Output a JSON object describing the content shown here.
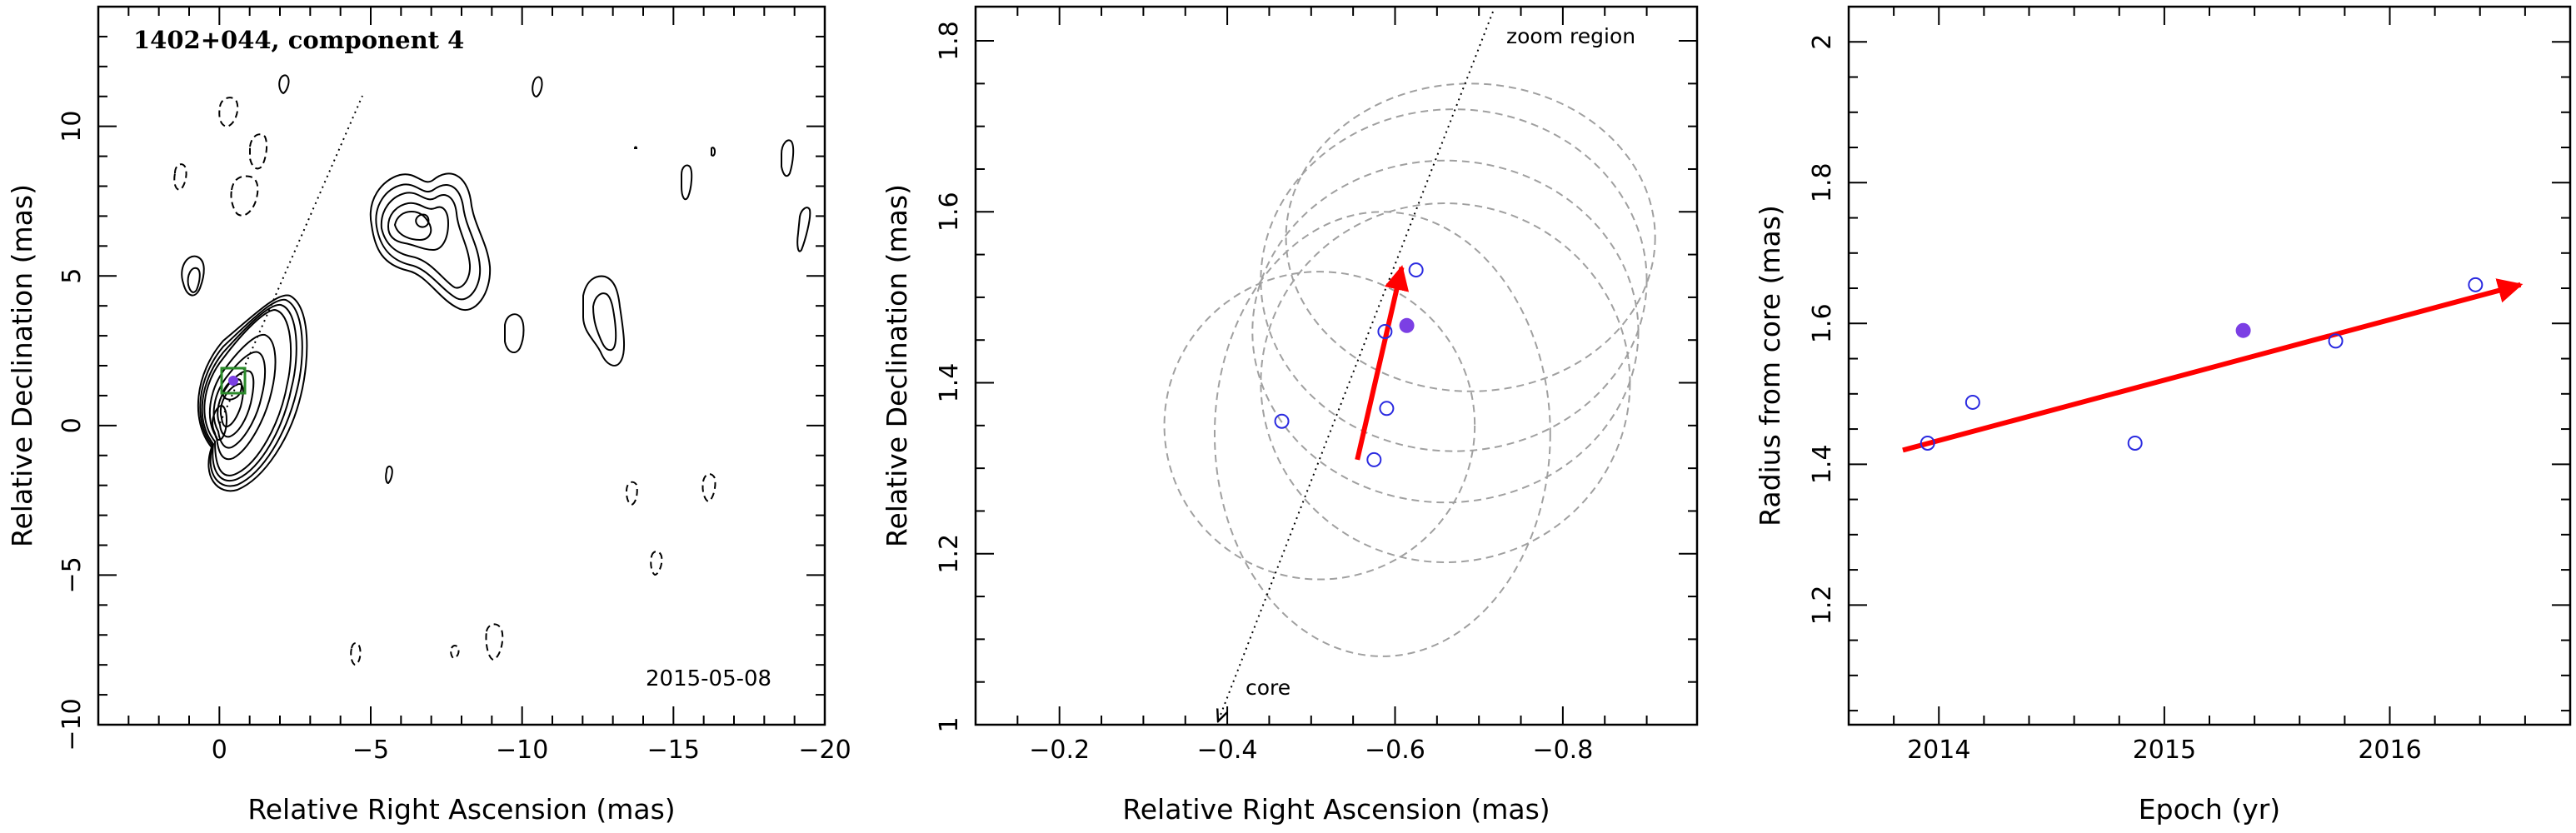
{
  "chart_data": [
    {
      "type": "contour",
      "title": "1402+044, component 4",
      "date": "2015-05-08",
      "xlabel": "Relative Right Ascension (mas)",
      "ylabel": "Relative Declination (mas)",
      "xlim": [
        4,
        -20
      ],
      "ylim": [
        -10,
        14
      ],
      "xticks": [
        0,
        -5,
        -10,
        -15,
        -20
      ],
      "yticks": [
        -10,
        -5,
        0,
        5,
        10
      ],
      "component_position": {
        "x": -0.61,
        "y": 1.47
      },
      "contour_levels": 9,
      "direction_line": "dotted line from core toward the north-east",
      "colors": {
        "marker": "#7b3fe4",
        "box": "#2a8a2a",
        "line": "#000000"
      }
    },
    {
      "type": "scatter",
      "xlabel": "Relative Right Ascension (mas)",
      "ylabel": "Relative Declination (mas)",
      "xlim": [
        -0.1,
        -0.96
      ],
      "ylim": [
        1.0,
        1.84
      ],
      "xticks": [
        "−0.2",
        "−0.4",
        "−0.6",
        "−0.8"
      ],
      "yticks": [
        "1",
        "1.2",
        "1.4",
        "1.6",
        "1.8"
      ],
      "labels": {
        "zoom": "zoom region",
        "core": "core"
      },
      "open_points": [
        {
          "x": -0.465,
          "y": 1.355
        },
        {
          "x": -0.575,
          "y": 1.31
        },
        {
          "x": -0.59,
          "y": 1.37
        },
        {
          "x": -0.588,
          "y": 1.46
        },
        {
          "x": -0.625,
          "y": 1.532
        }
      ],
      "filled_point": {
        "x": -0.614,
        "y": 1.467
      },
      "motion_arrow": {
        "from": [
          -0.555,
          1.31
        ],
        "to": [
          -0.608,
          1.535
        ]
      },
      "beam_ellipses": [
        {
          "cx": -0.51,
          "cy": 1.35,
          "rx": 0.185,
          "ry": 0.18
        },
        {
          "cx": -0.585,
          "cy": 1.34,
          "rx": 0.2,
          "ry": 0.26
        },
        {
          "cx": -0.66,
          "cy": 1.4,
          "rx": 0.22,
          "ry": 0.21
        },
        {
          "cx": -0.66,
          "cy": 1.46,
          "rx": 0.23,
          "ry": 0.2
        },
        {
          "cx": -0.67,
          "cy": 1.52,
          "rx": 0.23,
          "ry": 0.2
        },
        {
          "cx": -0.69,
          "cy": 1.57,
          "rx": 0.22,
          "ry": 0.18
        }
      ],
      "colors": {
        "open": "#2a2ae0",
        "filled": "#7b3fe4",
        "arrow": "#ff0000",
        "ellipse": "#a0a0a0"
      }
    },
    {
      "type": "scatter",
      "xlabel": "Epoch (yr)",
      "ylabel": "Radius from core (mas)",
      "xlim": [
        2013.6,
        2016.8
      ],
      "ylim": [
        1.03,
        2.05
      ],
      "xticks": [
        "2014",
        "2015",
        "2016"
      ],
      "yticks": [
        "1.2",
        "1.4",
        "1.6",
        "1.8",
        "2"
      ],
      "open_points": [
        {
          "x": 2013.95,
          "y": 1.43
        },
        {
          "x": 2014.15,
          "y": 1.488
        },
        {
          "x": 2014.87,
          "y": 1.43
        },
        {
          "x": 2015.76,
          "y": 1.575
        },
        {
          "x": 2016.38,
          "y": 1.655
        }
      ],
      "filled_point": {
        "x": 2015.35,
        "y": 1.59
      },
      "fit_arrow": {
        "from": [
          2013.84,
          1.42
        ],
        "to": [
          2016.58,
          1.655
        ]
      },
      "colors": {
        "open": "#2a2ae0",
        "filled": "#7b3fe4",
        "arrow": "#ff0000"
      }
    }
  ]
}
